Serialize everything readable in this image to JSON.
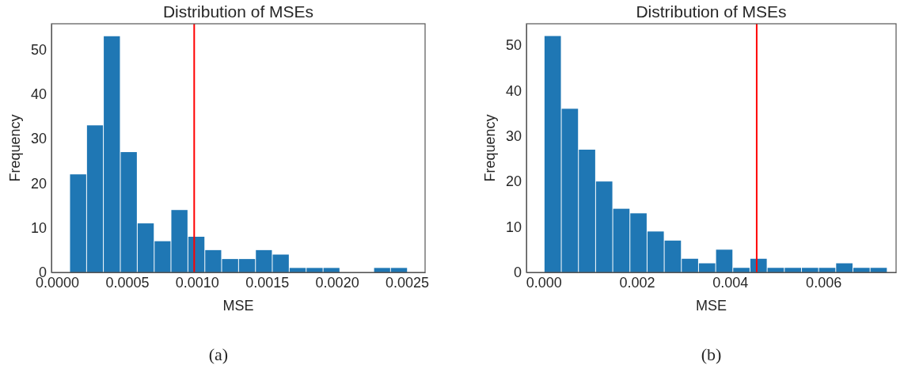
{
  "chart_data": [
    {
      "type": "histogram",
      "title": "Distribution of MSEs",
      "xlabel": "MSE",
      "ylabel": "Frequency",
      "annotations": [
        "(a)"
      ],
      "color": "#1f77b4",
      "bins": [
        9e-05,
        0.000211,
        0.000331,
        0.000452,
        0.000573,
        0.000694,
        0.000814,
        0.000935,
        0.001056,
        0.001176,
        0.001297,
        0.001418,
        0.001538,
        0.001659,
        0.00178,
        0.001901,
        0.002021,
        0.002142,
        0.002263,
        0.002383,
        0.002504
      ],
      "values": [
        22,
        33,
        53,
        27,
        11,
        7,
        14,
        8,
        5,
        3,
        3,
        5,
        4,
        1,
        1,
        1,
        0,
        0,
        1,
        1
      ],
      "xlim": [
        -4e-05,
        0.00263
      ],
      "xticks": [
        {
          "value": 0,
          "label": "0.0000"
        },
        {
          "value": 0.0005,
          "label": "0.0005"
        },
        {
          "value": 0.001,
          "label": "0.0010"
        },
        {
          "value": 0.0015,
          "label": "0.0015"
        },
        {
          "value": 0.002,
          "label": "0.0020"
        },
        {
          "value": 0.0025,
          "label": "0.0025"
        }
      ],
      "ylim": [
        0,
        55.8
      ],
      "yticks": [
        0,
        10,
        20,
        30,
        40,
        50
      ],
      "grid": false,
      "ref_lines": [
        {
          "axis": "x",
          "value": 0.00098,
          "color": "#ff0000"
        }
      ]
    },
    {
      "type": "histogram",
      "title": "Distribution of MSEs",
      "xlabel": "MSE",
      "ylabel": "Frequency",
      "annotations": [
        "(b)"
      ],
      "color": "#1f77b4",
      "bins": [
        1e-05,
        0.000378,
        0.000746,
        0.001114,
        0.001482,
        0.00185,
        0.002218,
        0.002586,
        0.002954,
        0.003322,
        0.00369,
        0.004058,
        0.004426,
        0.004794,
        0.005162,
        0.00553,
        0.005898,
        0.006266,
        0.006634,
        0.007002,
        0.00737
      ],
      "values": [
        52,
        36,
        27,
        20,
        14,
        13,
        9,
        7,
        3,
        2,
        5,
        1,
        3,
        1,
        1,
        1,
        1,
        2,
        1,
        1
      ],
      "xlim": [
        -0.00037,
        0.00756
      ],
      "xticks": [
        {
          "value": 0,
          "label": "0.000"
        },
        {
          "value": 0.002,
          "label": "0.002"
        },
        {
          "value": 0.004,
          "label": "0.004"
        },
        {
          "value": 0.006,
          "label": "0.006"
        }
      ],
      "ylim": [
        0,
        54.7
      ],
      "yticks": [
        0,
        10,
        20,
        30,
        40,
        50
      ],
      "grid": false,
      "ref_lines": [
        {
          "axis": "x",
          "value": 0.00457,
          "color": "#ff0000"
        }
      ]
    }
  ]
}
